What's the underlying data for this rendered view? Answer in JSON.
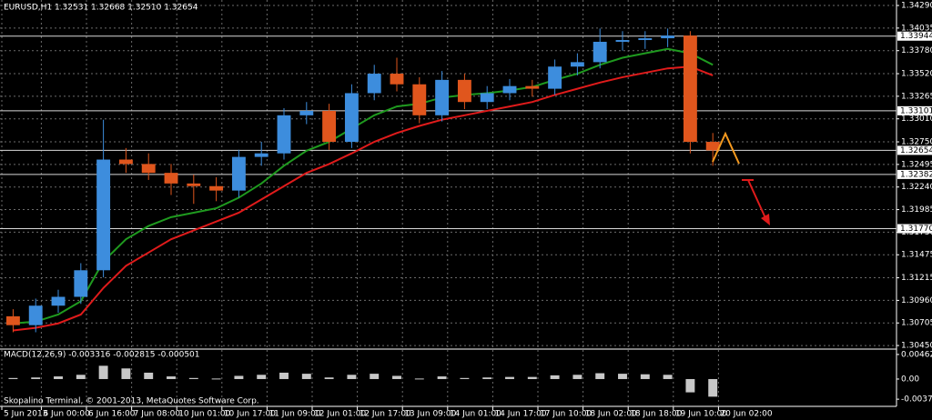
{
  "header": "EURUSD,H1  1.32531 1.32668 1.32510 1.32654",
  "footer": "Skopalino Terminal, © 2001-2013, MetaQuotes Software Corp.",
  "chart_data": {
    "type": "candlestick",
    "x": [
      4,
      12,
      20,
      28,
      36,
      44,
      52,
      60,
      68,
      76,
      84,
      92,
      100,
      108,
      116,
      124,
      132,
      140,
      148,
      156,
      164,
      172,
      180,
      188,
      196,
      204,
      212,
      220,
      228,
      236,
      244,
      252
    ],
    "open": [
      1.3078,
      1.3068,
      1.309,
      1.31,
      1.313,
      1.3255,
      1.325,
      1.324,
      1.3228,
      1.3225,
      1.322,
      1.3258,
      1.3262,
      1.3305,
      1.331,
      1.3275,
      1.333,
      1.3352,
      1.334,
      1.3305,
      1.3345,
      1.332,
      1.333,
      1.3338,
      1.3335,
      1.336,
      1.3365,
      1.3388,
      1.339,
      1.3392,
      1.3395,
      1.3275
    ],
    "high": [
      1.3086,
      1.3098,
      1.3108,
      1.3138,
      1.33,
      1.3268,
      1.3262,
      1.325,
      1.3238,
      1.3235,
      1.3266,
      1.3275,
      1.3313,
      1.332,
      1.3318,
      1.334,
      1.3362,
      1.337,
      1.3348,
      1.3355,
      1.3352,
      1.3338,
      1.3346,
      1.3345,
      1.3368,
      1.3375,
      1.3403,
      1.34,
      1.34,
      1.3403,
      1.34,
      1.3285
    ],
    "low": [
      1.306,
      1.306,
      1.3082,
      1.3092,
      1.3122,
      1.324,
      1.3232,
      1.3215,
      1.3205,
      1.3208,
      1.3212,
      1.3248,
      1.3255,
      1.3295,
      1.3266,
      1.3268,
      1.3322,
      1.3332,
      1.3296,
      1.3298,
      1.3312,
      1.3312,
      1.3322,
      1.3326,
      1.3328,
      1.335,
      1.3358,
      1.3378,
      1.338,
      1.3382,
      1.3262,
      1.3248
    ],
    "close": [
      1.3068,
      1.309,
      1.31,
      1.313,
      1.3255,
      1.325,
      1.324,
      1.3228,
      1.3225,
      1.322,
      1.3258,
      1.3262,
      1.3305,
      1.331,
      1.3275,
      1.333,
      1.3352,
      1.334,
      1.3305,
      1.3345,
      1.332,
      1.333,
      1.3338,
      1.3335,
      1.336,
      1.3365,
      1.3388,
      1.339,
      1.3392,
      1.3395,
      1.3275,
      1.32654
    ],
    "up_color": "#3d8ddd",
    "down_color": "#e0561d",
    "moving_averages": [
      {
        "color": "#e01b1b",
        "values": [
          1.3062,
          1.3065,
          1.307,
          1.308,
          1.311,
          1.3135,
          1.315,
          1.3165,
          1.3175,
          1.3185,
          1.3195,
          1.321,
          1.3225,
          1.324,
          1.325,
          1.3262,
          1.3275,
          1.3285,
          1.3293,
          1.33,
          1.3305,
          1.331,
          1.3315,
          1.332,
          1.3328,
          1.3335,
          1.3342,
          1.3348,
          1.3353,
          1.3358,
          1.336,
          1.335
        ]
      },
      {
        "color": "#1f9a1f",
        "values": [
          1.307,
          1.3072,
          1.308,
          1.3095,
          1.314,
          1.3165,
          1.318,
          1.319,
          1.3195,
          1.32,
          1.3212,
          1.3228,
          1.3248,
          1.3265,
          1.3275,
          1.329,
          1.3305,
          1.3315,
          1.3318,
          1.3325,
          1.3328,
          1.333,
          1.3333,
          1.3337,
          1.3345,
          1.3352,
          1.3362,
          1.337,
          1.3375,
          1.338,
          1.3375,
          1.3362
        ]
      }
    ],
    "xlim": [
      -0.65,
      317.1
    ],
    "xticks": [
      {
        "value": 0,
        "label": "5 Jun 2013"
      },
      {
        "value": 14,
        "label": "6 Jun 00:00"
      },
      {
        "value": 30,
        "label": "6 Jun 16:00"
      },
      {
        "value": 46,
        "label": "7 Jun 08:00"
      },
      {
        "value": 62,
        "label": "10 Jun 01:00"
      },
      {
        "value": 78,
        "label": "10 Jun 17:00"
      },
      {
        "value": 94,
        "label": "11 Jun 09:00"
      },
      {
        "value": 110,
        "label": "12 Jun 01:00"
      },
      {
        "value": 126,
        "label": "12 Jun 17:00"
      },
      {
        "value": 142,
        "label": "13 Jun 09:00"
      },
      {
        "value": 158,
        "label": "14 Jun 01:00"
      },
      {
        "value": 174,
        "label": "14 Jun 17:00"
      },
      {
        "value": 190,
        "label": "17 Jun 10:00"
      },
      {
        "value": 206,
        "label": "18 Jun 02:00"
      },
      {
        "value": 222,
        "label": "18 Jun 18:00"
      },
      {
        "value": 238,
        "label": "19 Jun 10:00"
      },
      {
        "value": 254,
        "label": "20 Jun 02:00"
      }
    ],
    "ylim": [
      1.3042,
      1.34352
    ],
    "yticks": [
      {
        "value": 1.3429,
        "label": "1.34290"
      },
      1.34035,
      {
        "value": 1.3378,
        "label": "1.33780"
      },
      {
        "value": 1.3352,
        "label": "1.33520"
      },
      1.33265,
      {
        "value": 1.3301,
        "label": "1.33010"
      },
      {
        "value": 1.3275,
        "label": "1.32750"
      },
      1.32495,
      {
        "value": 1.3224,
        "label": "1.32240"
      },
      1.31985,
      {
        "value": 1.3173,
        "label": "1.31730"
      },
      1.31475,
      1.31215,
      {
        "value": 1.3096,
        "label": "1.30960"
      },
      1.30705,
      {
        "value": 1.3045,
        "label": "1.30450"
      }
    ],
    "levels": [
      1.33944,
      1.33101,
      1.32654,
      1.32382,
      {
        "value": 1.3177,
        "label": "1.31770"
      }
    ],
    "grid": true,
    "macd": {
      "title": "MACD(12,26,9) -0.003316 -0.002815 -0.000501",
      "histogram": [
        0.0002,
        0.0003,
        0.0005,
        0.0008,
        0.0025,
        0.002,
        0.0012,
        0.0005,
        0.0002,
        0.0001,
        0.0006,
        0.0008,
        0.0012,
        0.001,
        0.0003,
        0.0008,
        0.001,
        0.0006,
        0.0001,
        0.0005,
        0.0002,
        0.0003,
        0.0004,
        0.0004,
        0.0007,
        0.0008,
        0.0011,
        0.001,
        0.0009,
        0.0008,
        -0.0025,
        -0.003316
      ],
      "color": "#c8c8c8",
      "ylim": [
        -0.004966,
        0.005468
      ],
      "yticks": [
        0.004627,
        {
          "value": 0,
          "label": "0.00"
        },
        -0.003788
      ]
    }
  }
}
